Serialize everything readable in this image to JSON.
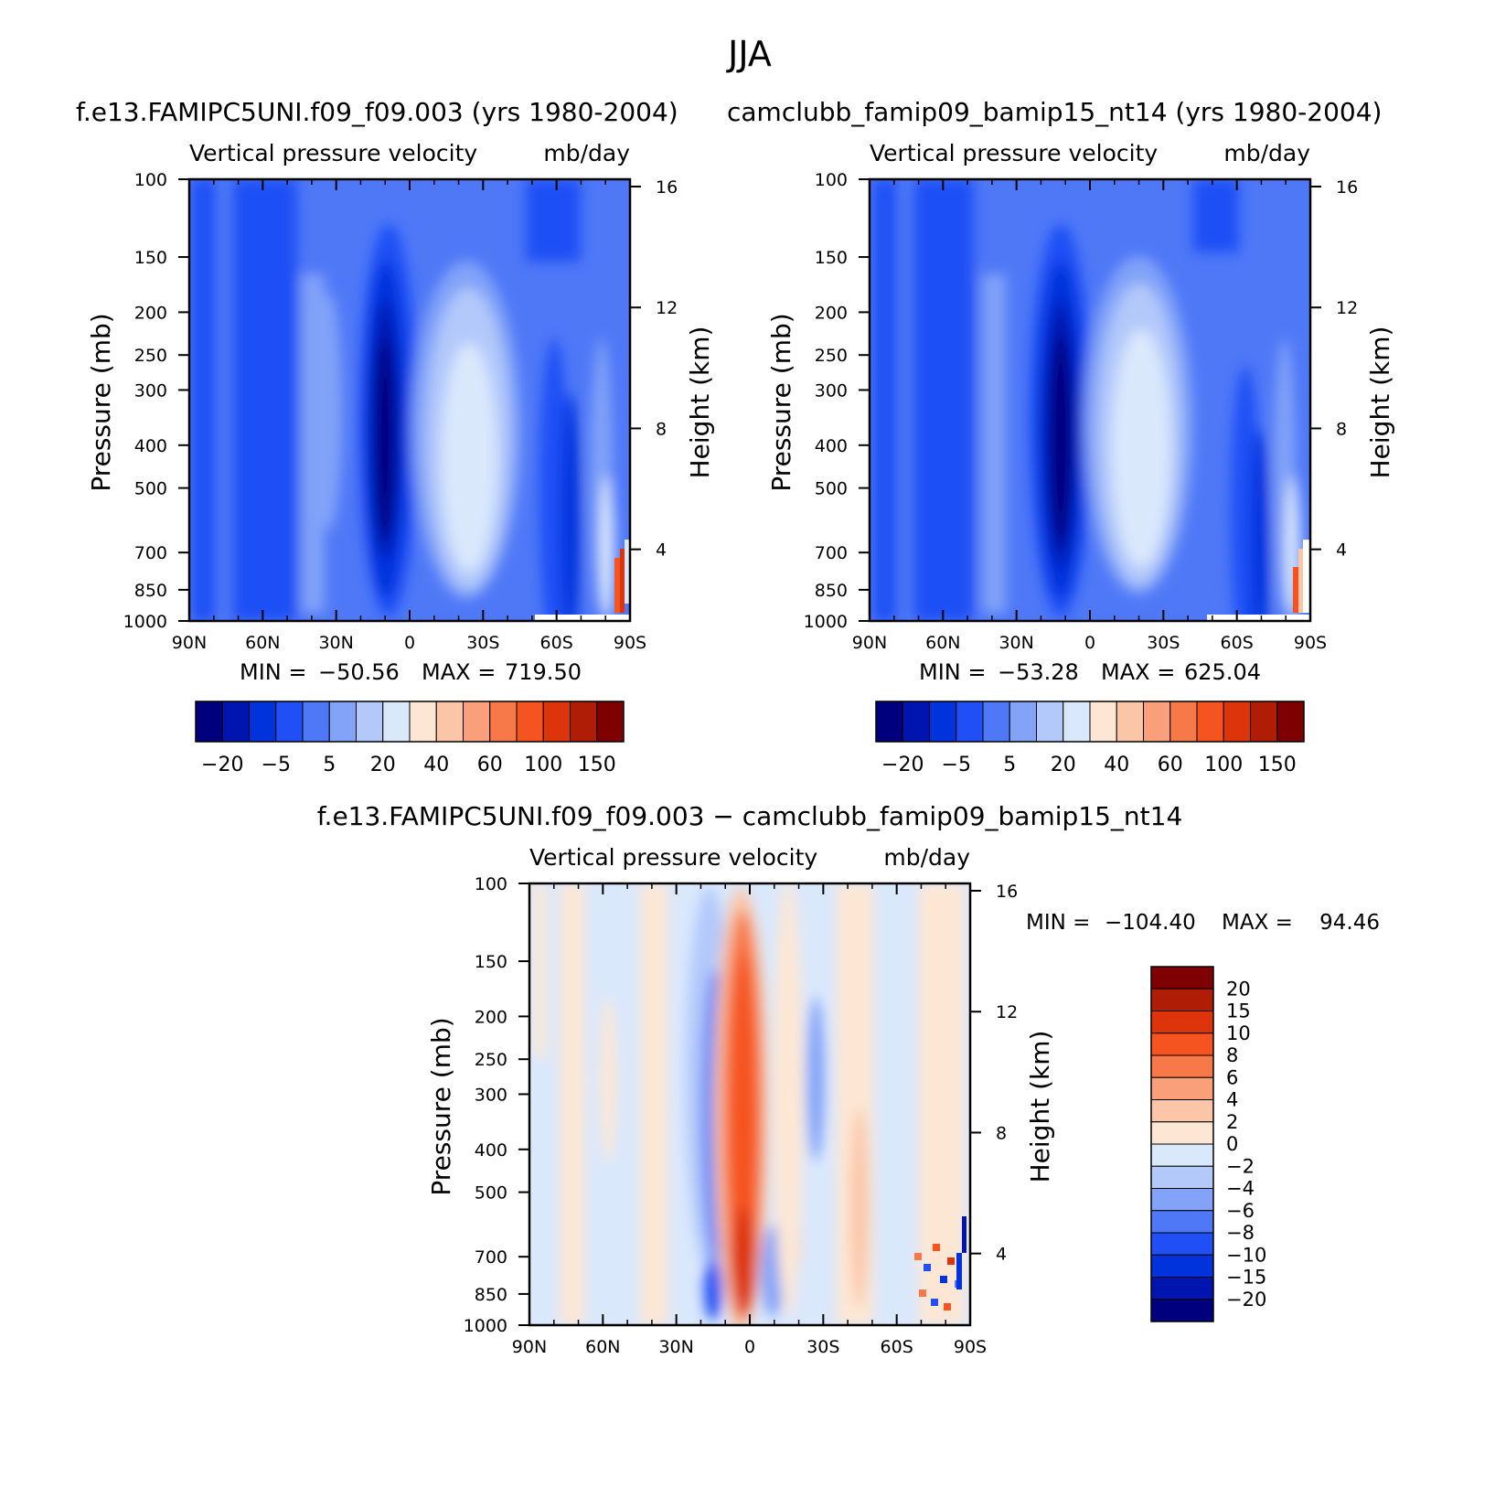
{
  "page_title": "JJA",
  "chart_data": [
    {
      "type": "heatmap",
      "title": "f.e13.FAMIPC5UNI.f09_f09.003 (yrs 1980-2004)",
      "subtitle_left": "Vertical pressure velocity",
      "subtitle_right": "mb/day",
      "xlabel": "",
      "ylabel": "Pressure (mb)",
      "ylabel_right": "Height (km)",
      "x_ticks": [
        "90N",
        "60N",
        "30N",
        "0",
        "30S",
        "60S",
        "90S"
      ],
      "y_ticks": [
        "100",
        "150",
        "200",
        "250",
        "300",
        "400",
        "500",
        "700",
        "850",
        "1000"
      ],
      "y_ticks_right": [
        "16",
        "12",
        "8",
        "4"
      ],
      "ylim": [
        1000,
        100
      ],
      "y_scale": "log",
      "stats": {
        "min_label": "MIN =",
        "min": "-50.56",
        "max_label": "MAX =",
        "max": "719.50"
      },
      "colorbar": {
        "orientation": "horizontal",
        "colors": [
          "#00007f",
          "#0014b0",
          "#0033db",
          "#1f4ff5",
          "#4f78f7",
          "#82a3f8",
          "#b3c9fa",
          "#dae8fc",
          "#fde7d4",
          "#fbc6a8",
          "#f9a07a",
          "#f77849",
          "#f5531f",
          "#dd340b",
          "#b01d06",
          "#7f0000"
        ],
        "labels": [
          "-20",
          "-5",
          "5",
          "20",
          "40",
          "60",
          "100",
          "150"
        ]
      }
    },
    {
      "type": "heatmap",
      "title": "camclubb_famip09_bamip15_nt14 (yrs 1980-2004)",
      "subtitle_left": "Vertical pressure velocity",
      "subtitle_right": "mb/day",
      "xlabel": "",
      "ylabel": "Pressure (mb)",
      "ylabel_right": "Height (km)",
      "x_ticks": [
        "90N",
        "60N",
        "30N",
        "0",
        "30S",
        "60S",
        "90S"
      ],
      "y_ticks": [
        "100",
        "150",
        "200",
        "250",
        "300",
        "400",
        "500",
        "700",
        "850",
        "1000"
      ],
      "y_ticks_right": [
        "16",
        "12",
        "8",
        "4"
      ],
      "ylim": [
        1000,
        100
      ],
      "y_scale": "log",
      "stats": {
        "min_label": "MIN =",
        "min": "-53.28",
        "max_label": "MAX =",
        "max": "625.04"
      },
      "colorbar": {
        "orientation": "horizontal",
        "colors": [
          "#00007f",
          "#0014b0",
          "#0033db",
          "#1f4ff5",
          "#4f78f7",
          "#82a3f8",
          "#b3c9fa",
          "#dae8fc",
          "#fde7d4",
          "#fbc6a8",
          "#f9a07a",
          "#f77849",
          "#f5531f",
          "#dd340b",
          "#b01d06",
          "#7f0000"
        ],
        "labels": [
          "-20",
          "-5",
          "5",
          "20",
          "40",
          "60",
          "100",
          "150"
        ]
      }
    },
    {
      "type": "heatmap",
      "title": "f.e13.FAMIPC5UNI.f09_f09.003 - camclubb_famip09_bamip15_nt14",
      "subtitle_left": "Vertical pressure velocity",
      "subtitle_right": "mb/day",
      "xlabel": "",
      "ylabel": "Pressure (mb)",
      "ylabel_right": "Height (km)",
      "x_ticks": [
        "90N",
        "60N",
        "30N",
        "0",
        "30S",
        "60S",
        "90S"
      ],
      "y_ticks": [
        "100",
        "150",
        "200",
        "250",
        "300",
        "400",
        "500",
        "700",
        "850",
        "1000"
      ],
      "y_ticks_right": [
        "16",
        "12",
        "8",
        "4"
      ],
      "ylim": [
        1000,
        100
      ],
      "y_scale": "log",
      "stats": {
        "min_label": "MIN =",
        "min": "-104.40",
        "max_label": "MAX =",
        "max": "94.46"
      },
      "colorbar": {
        "orientation": "vertical",
        "colors": [
          "#7f0000",
          "#b01d06",
          "#dd340b",
          "#f5531f",
          "#f77849",
          "#f9a07a",
          "#fbc6a8",
          "#fde7d4",
          "#dae8fc",
          "#b3c9fa",
          "#82a3f8",
          "#4f78f7",
          "#1f4ff5",
          "#0033db",
          "#0014b0",
          "#00007f"
        ],
        "labels": [
          "20",
          "15",
          "10",
          "8",
          "6",
          "4",
          "2",
          "0",
          "-2",
          "-4",
          "-6",
          "-8",
          "-10",
          "-15",
          "-20"
        ]
      }
    }
  ]
}
